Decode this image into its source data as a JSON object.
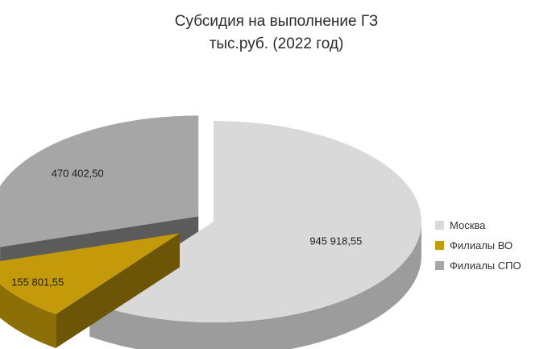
{
  "chart_data": {
    "type": "pie",
    "title": "Субсидия на выполнение ГЗ",
    "subtitle": "тыс.руб. (2022 год)",
    "categories": [
      "Москва",
      "Филиалы ВО",
      "Филиалы СПО"
    ],
    "values": [
      945918.55,
      155801.55,
      470402.5
    ],
    "data_labels": [
      "945 918,55",
      "155 801,55",
      "470 402,50"
    ],
    "colors": [
      "#d9d9d9",
      "#c49a0a",
      "#a6a6a6"
    ],
    "legend_position": "right",
    "style": "3d-exploded"
  }
}
